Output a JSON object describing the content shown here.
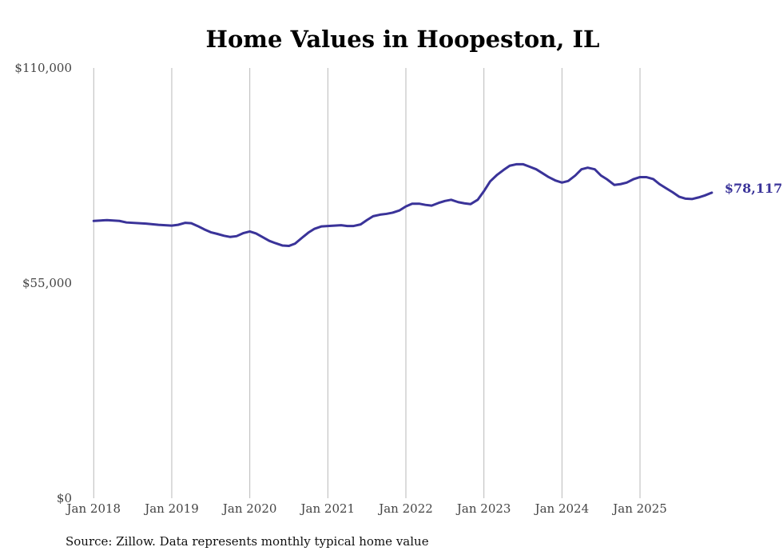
{
  "chart_data": {
    "type": "line",
    "title": "Home Values in Hoopeston, IL",
    "xlabel": "",
    "ylabel": "",
    "ylim": [
      0,
      110000
    ],
    "y_ticks": [
      {
        "value": 0,
        "label": "$0"
      },
      {
        "value": 55000,
        "label": "$55,000"
      },
      {
        "value": 110000,
        "label": "$110,000"
      }
    ],
    "x_ticks": [
      {
        "value": 2018.0,
        "label": "Jan 2018"
      },
      {
        "value": 2019.0,
        "label": "Jan 2019"
      },
      {
        "value": 2020.0,
        "label": "Jan 2020"
      },
      {
        "value": 2021.0,
        "label": "Jan 2021"
      },
      {
        "value": 2022.0,
        "label": "Jan 2022"
      },
      {
        "value": 2023.0,
        "label": "Jan 2023"
      },
      {
        "value": 2024.0,
        "label": "Jan 2024"
      },
      {
        "value": 2025.0,
        "label": "Jan 2025"
      }
    ],
    "xlim": [
      2017.7,
      2026.3
    ],
    "grid": "vertical",
    "series": [
      {
        "name": "Typical home value",
        "color": "#3a3399",
        "end_label": "$78,117",
        "points": [
          [
            2018.0,
            70900
          ],
          [
            2018.17,
            71100
          ],
          [
            2018.33,
            70900
          ],
          [
            2018.42,
            70500
          ],
          [
            2018.67,
            70200
          ],
          [
            2018.83,
            69900
          ],
          [
            2019.0,
            69700
          ],
          [
            2019.08,
            69900
          ],
          [
            2019.17,
            70400
          ],
          [
            2019.25,
            70300
          ],
          [
            2019.33,
            69600
          ],
          [
            2019.42,
            68700
          ],
          [
            2019.5,
            68000
          ],
          [
            2019.58,
            67600
          ],
          [
            2019.67,
            67100
          ],
          [
            2019.75,
            66800
          ],
          [
            2019.83,
            67000
          ],
          [
            2019.92,
            67800
          ],
          [
            2020.0,
            68200
          ],
          [
            2020.08,
            67700
          ],
          [
            2020.17,
            66700
          ],
          [
            2020.25,
            65800
          ],
          [
            2020.33,
            65200
          ],
          [
            2020.42,
            64600
          ],
          [
            2020.5,
            64500
          ],
          [
            2020.58,
            65100
          ],
          [
            2020.67,
            66600
          ],
          [
            2020.75,
            67900
          ],
          [
            2020.83,
            68900
          ],
          [
            2020.92,
            69500
          ],
          [
            2021.0,
            69600
          ],
          [
            2021.17,
            69800
          ],
          [
            2021.25,
            69600
          ],
          [
            2021.33,
            69600
          ],
          [
            2021.42,
            70000
          ],
          [
            2021.5,
            71100
          ],
          [
            2021.58,
            72100
          ],
          [
            2021.67,
            72500
          ],
          [
            2021.75,
            72700
          ],
          [
            2021.83,
            73000
          ],
          [
            2021.92,
            73600
          ],
          [
            2022.0,
            74600
          ],
          [
            2022.08,
            75300
          ],
          [
            2022.17,
            75300
          ],
          [
            2022.25,
            75000
          ],
          [
            2022.33,
            74800
          ],
          [
            2022.42,
            75500
          ],
          [
            2022.5,
            76000
          ],
          [
            2022.58,
            76300
          ],
          [
            2022.67,
            75700
          ],
          [
            2022.75,
            75400
          ],
          [
            2022.83,
            75200
          ],
          [
            2022.92,
            76300
          ],
          [
            2023.0,
            78500
          ],
          [
            2023.08,
            81000
          ],
          [
            2023.17,
            82700
          ],
          [
            2023.25,
            83900
          ],
          [
            2023.33,
            85000
          ],
          [
            2023.42,
            85400
          ],
          [
            2023.5,
            85400
          ],
          [
            2023.58,
            84800
          ],
          [
            2023.67,
            84100
          ],
          [
            2023.75,
            83100
          ],
          [
            2023.83,
            82100
          ],
          [
            2023.92,
            81200
          ],
          [
            2024.0,
            80700
          ],
          [
            2024.08,
            81100
          ],
          [
            2024.17,
            82500
          ],
          [
            2024.25,
            84100
          ],
          [
            2024.33,
            84500
          ],
          [
            2024.42,
            84100
          ],
          [
            2024.5,
            82500
          ],
          [
            2024.58,
            81500
          ],
          [
            2024.67,
            80100
          ],
          [
            2024.75,
            80300
          ],
          [
            2024.83,
            80700
          ],
          [
            2024.92,
            81600
          ],
          [
            2025.0,
            82100
          ],
          [
            2025.08,
            82100
          ],
          [
            2025.17,
            81600
          ],
          [
            2025.25,
            80300
          ],
          [
            2025.33,
            79300
          ],
          [
            2025.42,
            78200
          ],
          [
            2025.5,
            77100
          ],
          [
            2025.58,
            76600
          ],
          [
            2025.67,
            76500
          ],
          [
            2025.75,
            76900
          ],
          [
            2025.83,
            77400
          ],
          [
            2025.92,
            78117
          ]
        ]
      }
    ]
  },
  "source_note": "Source: Zillow. Data represents monthly typical home value"
}
